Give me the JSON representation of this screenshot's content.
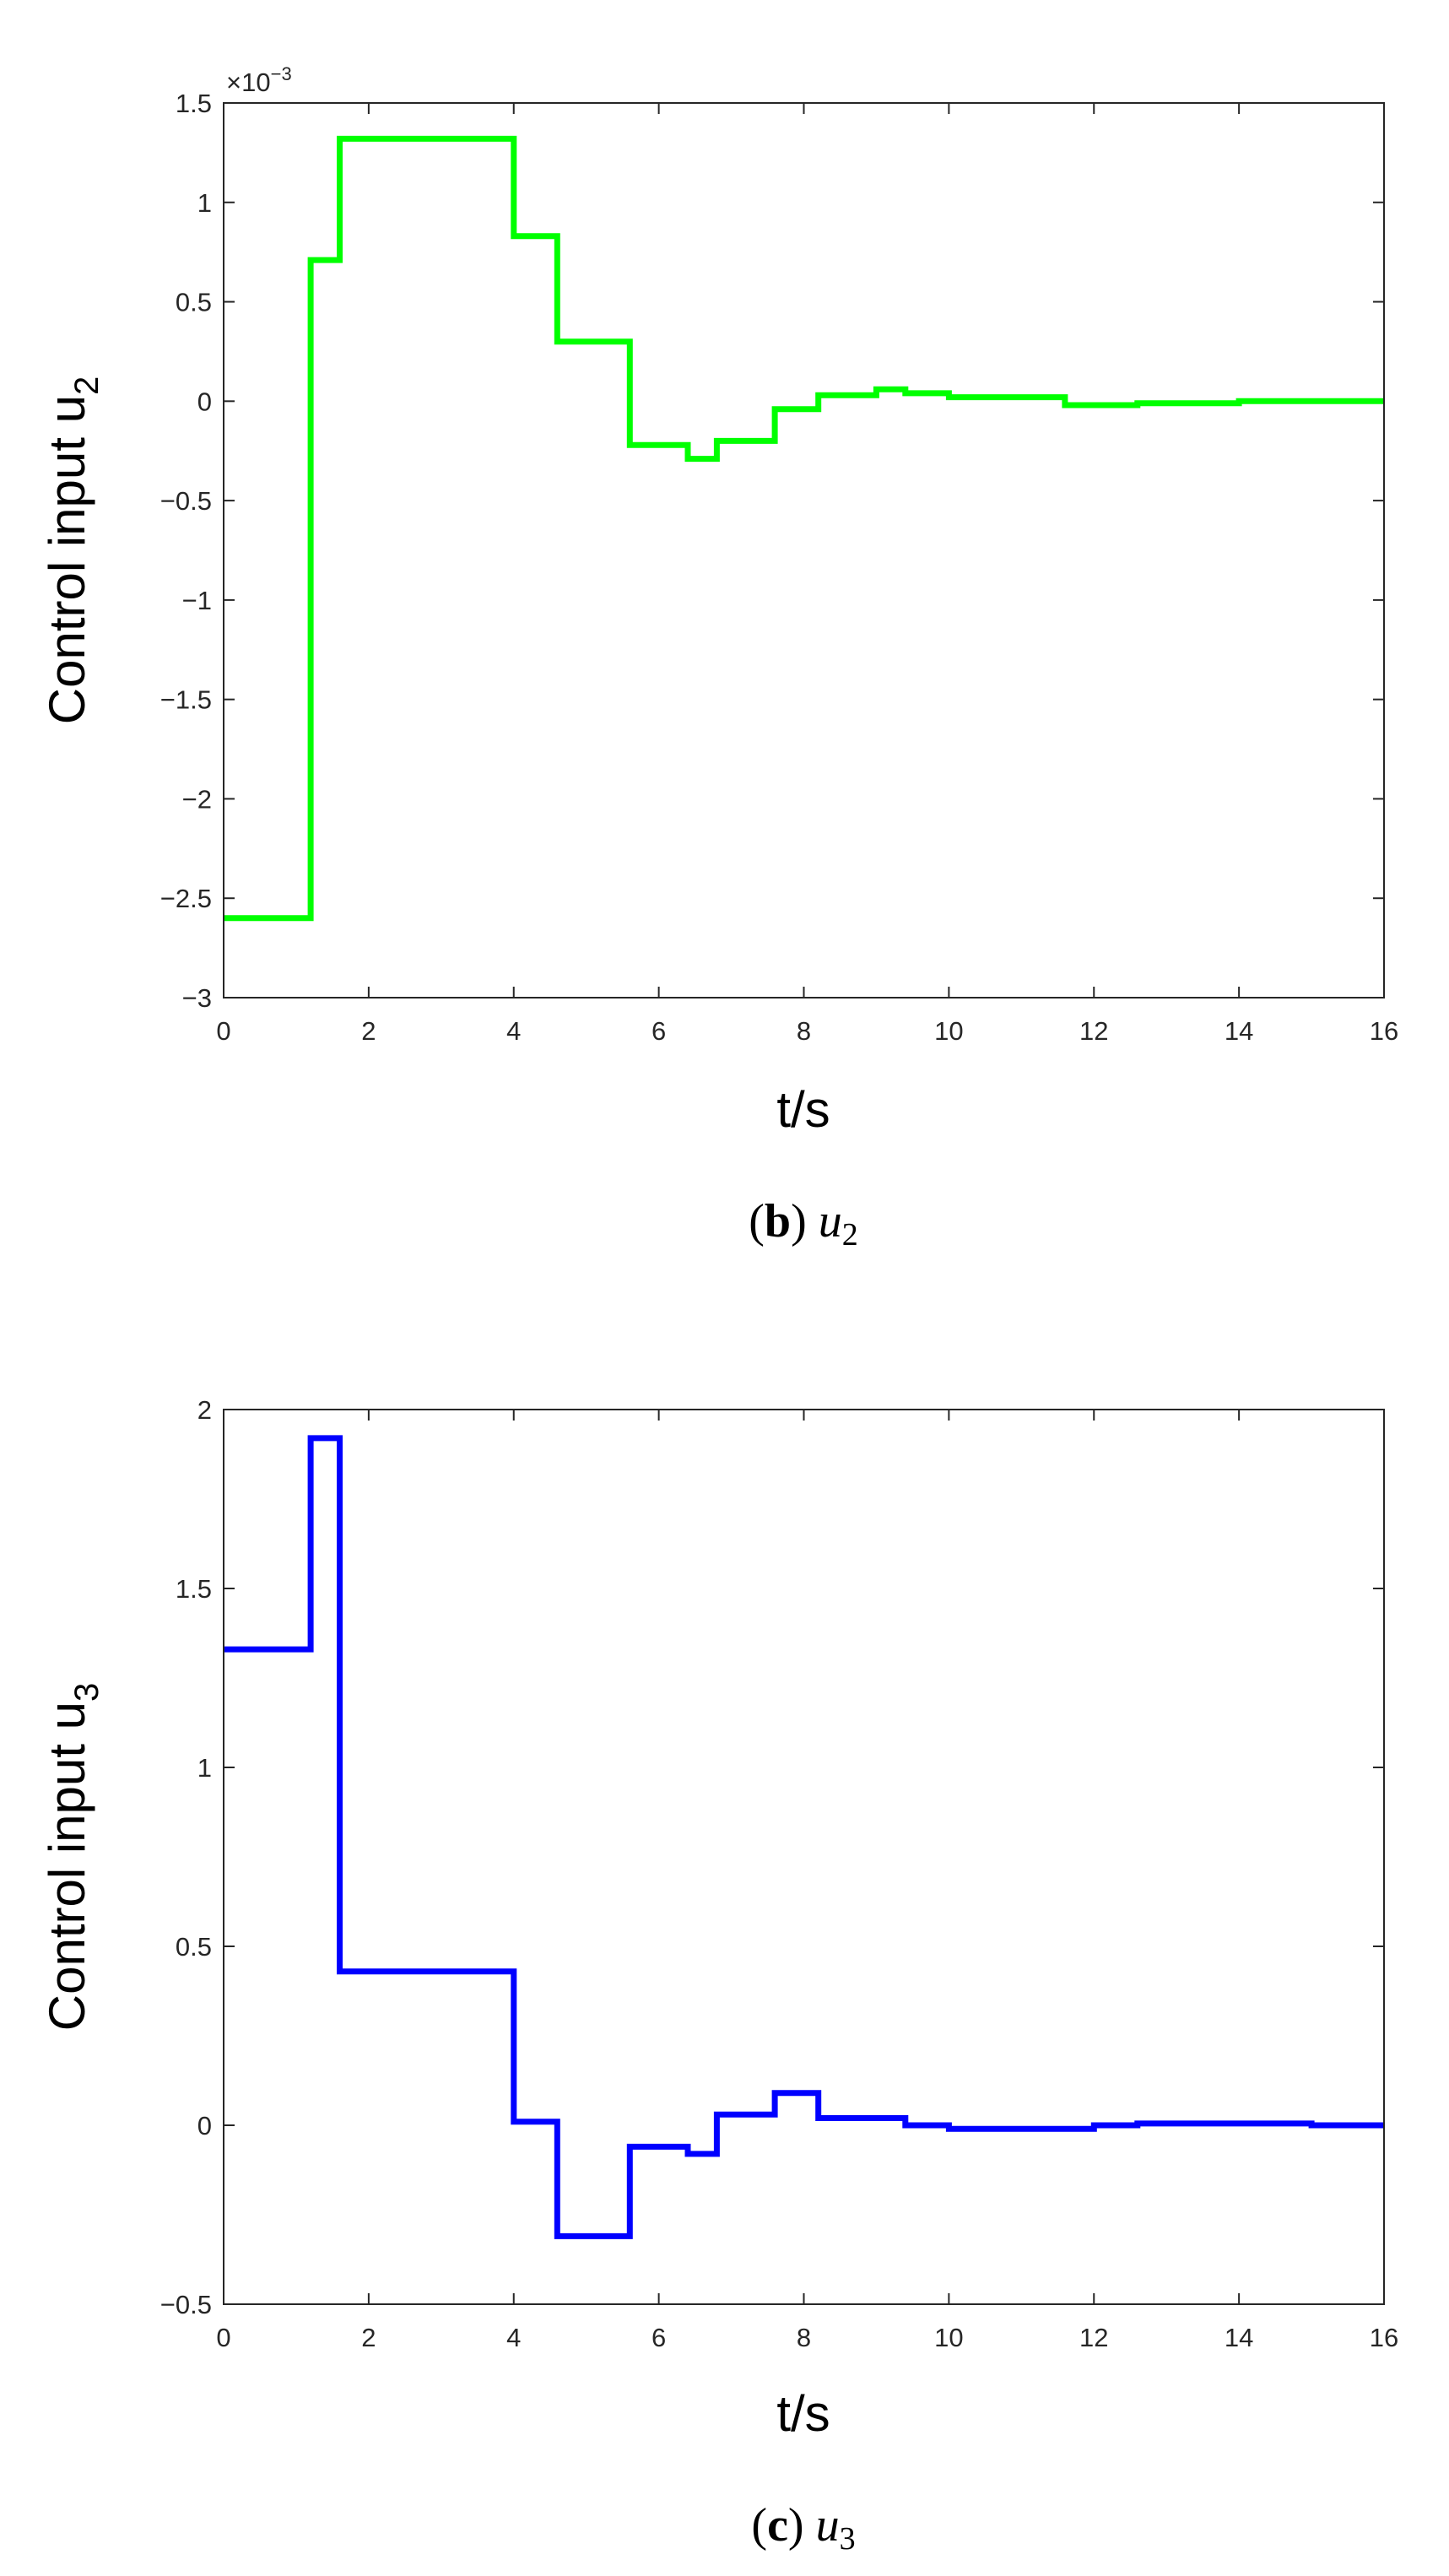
{
  "chart_data": [
    {
      "type": "line",
      "step": "post",
      "panel": "b",
      "caption": {
        "open": "(",
        "letter": "b",
        "close": ")",
        "var": "u",
        "sub": "2"
      },
      "xlabel": "t/s",
      "ylabel": {
        "text": "Control input u",
        "sub": "2"
      },
      "xlim": [
        0,
        16
      ],
      "ylim": [
        -3,
        1.5
      ],
      "xticks": [
        "0",
        "2",
        "4",
        "6",
        "8",
        "10",
        "12",
        "14",
        "16"
      ],
      "yticks": [
        "-3",
        "-2.5",
        "-2",
        "-1.5",
        "-1",
        "-0.5",
        "0",
        "0.5",
        "1",
        "1.5"
      ],
      "y_multiplier": {
        "base": "×10",
        "exp": "−3"
      },
      "grid": false,
      "color": "#00ff00",
      "series": [
        {
          "x": [
            0,
            1.2,
            1.6,
            4.0,
            4.6,
            5.6,
            6.4,
            6.8,
            7.6,
            8.2,
            9.0,
            9.4,
            10.0,
            11.6,
            12.6,
            14.0,
            16.0
          ],
          "values": [
            -2.6,
            0.71,
            1.32,
            0.83,
            0.3,
            -0.22,
            -0.29,
            -0.2,
            -0.04,
            0.03,
            0.06,
            0.04,
            0.02,
            -0.02,
            -0.01,
            0.0,
            0.0
          ]
        }
      ]
    },
    {
      "type": "line",
      "step": "post",
      "panel": "c",
      "caption": {
        "open": "(",
        "letter": "c",
        "close": ")",
        "var": "u",
        "sub": "3"
      },
      "xlabel": "t/s",
      "ylabel": {
        "text": "Control input u",
        "sub": "3"
      },
      "xlim": [
        0,
        16
      ],
      "ylim": [
        -0.5,
        2
      ],
      "xticks": [
        "0",
        "2",
        "4",
        "6",
        "8",
        "10",
        "12",
        "14",
        "16"
      ],
      "yticks": [
        "-0.5",
        "0",
        "0.5",
        "1",
        "1.5",
        "2"
      ],
      "grid": false,
      "color": "#0000ff",
      "series": [
        {
          "x": [
            0,
            1.2,
            1.6,
            4.0,
            4.6,
            5.6,
            6.4,
            6.8,
            7.6,
            8.2,
            9.0,
            9.4,
            10.0,
            11.6,
            12.0,
            12.6,
            15.0,
            16.0
          ],
          "values": [
            1.33,
            1.92,
            0.43,
            0.01,
            -0.31,
            -0.06,
            -0.08,
            0.03,
            0.09,
            0.02,
            0.02,
            0.0,
            -0.01,
            -0.01,
            0.0,
            0.005,
            0.0,
            0.0
          ]
        }
      ]
    }
  ]
}
